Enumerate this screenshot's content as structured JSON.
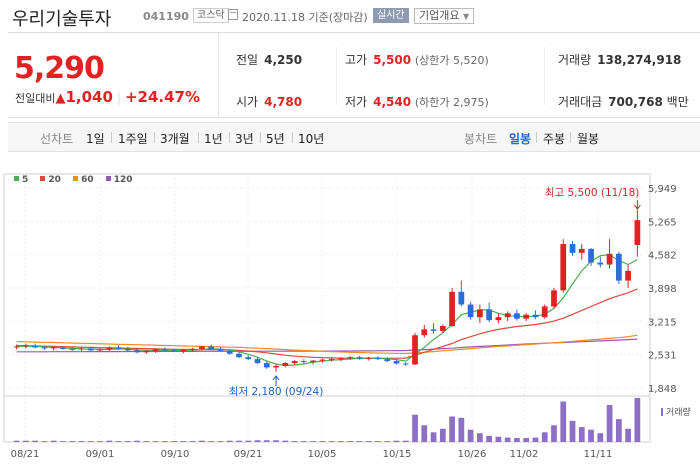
{
  "header": {
    "name": "우리기술투자",
    "code": "041190",
    "market": "코스닥",
    "date": "2020.11.18 기준(장마감)",
    "live": "실시간",
    "corp": "기업개요"
  },
  "summary": {
    "price": "5,290",
    "change_label": "전일대비",
    "change_value": "1,040",
    "change_rate": "+24.47%",
    "prev_label": "전일",
    "prev_value": "4,250",
    "open_label": "시가",
    "open_value": "4,780",
    "high_label": "고가",
    "high_value": "5,500",
    "high_sub": "(상한가 5,520)",
    "low_label": "저가",
    "low_value": "4,540",
    "low_sub": "(하한가 2,975)",
    "volume_label": "거래량",
    "volume_value": "138,274,918",
    "amount_label": "거래대금",
    "amount_value": "700,768",
    "amount_unit": "백만"
  },
  "periods": {
    "line_label": "선차트",
    "line_items": [
      "1일",
      "1주일",
      "3개월",
      "1년",
      "3년",
      "5년",
      "10년"
    ],
    "candle_label": "봉차트",
    "candle_items": [
      "일봉",
      "주봉",
      "월봉"
    ],
    "candle_active": 0
  },
  "colors": {
    "up": "#e12222",
    "down": "#2b6fd6",
    "ma5": "#4caf50",
    "ma20": "#e04a3a",
    "ma60": "#f08a24",
    "ma120": "#9b59b6",
    "volume": "#8e6fc6"
  },
  "chart_data": {
    "type": "candlestick",
    "ylim": [
      1848,
      5949
    ],
    "y_ticks": [
      "5,949",
      "5,265",
      "4,582",
      "3,898",
      "3,215",
      "2,531",
      "1,848"
    ],
    "x_ticks": [
      "08/21",
      "09/01",
      "09/10",
      "09/21",
      "10/05",
      "10/15",
      "10/26",
      "11/02",
      "11/11"
    ],
    "legend": [
      "5",
      "20",
      "60",
      "120"
    ],
    "volume_label": "거래량",
    "max_annotation": "최고 5,500 (11/18)",
    "min_annotation": "최저 2,180 (09/24)",
    "candles": [
      [
        2680,
        2740,
        2640,
        2700
      ],
      [
        2700,
        2760,
        2660,
        2720
      ],
      [
        2720,
        2760,
        2660,
        2680
      ],
      [
        2680,
        2720,
        2630,
        2660
      ],
      [
        2660,
        2710,
        2620,
        2680
      ],
      [
        2680,
        2710,
        2630,
        2650
      ],
      [
        2650,
        2690,
        2610,
        2640
      ],
      [
        2640,
        2680,
        2600,
        2660
      ],
      [
        2660,
        2690,
        2600,
        2620
      ],
      [
        2620,
        2660,
        2580,
        2640
      ],
      [
        2640,
        2700,
        2600,
        2680
      ],
      [
        2680,
        2720,
        2630,
        2650
      ],
      [
        2650,
        2690,
        2600,
        2620
      ],
      [
        2620,
        2650,
        2560,
        2580
      ],
      [
        2580,
        2630,
        2550,
        2610
      ],
      [
        2610,
        2660,
        2570,
        2640
      ],
      [
        2640,
        2680,
        2600,
        2620
      ],
      [
        2620,
        2660,
        2580,
        2600
      ],
      [
        2600,
        2640,
        2560,
        2630
      ],
      [
        2630,
        2670,
        2600,
        2650
      ],
      [
        2650,
        2710,
        2620,
        2700
      ],
      [
        2700,
        2740,
        2630,
        2640
      ],
      [
        2640,
        2680,
        2590,
        2610
      ],
      [
        2610,
        2640,
        2530,
        2550
      ],
      [
        2550,
        2580,
        2460,
        2480
      ],
      [
        2480,
        2520,
        2420,
        2440
      ],
      [
        2440,
        2480,
        2340,
        2360
      ],
      [
        2360,
        2400,
        2240,
        2270
      ],
      [
        2270,
        2330,
        2180,
        2300
      ],
      [
        2300,
        2380,
        2270,
        2360
      ],
      [
        2360,
        2420,
        2320,
        2400
      ],
      [
        2400,
        2440,
        2350,
        2380
      ],
      [
        2380,
        2420,
        2330,
        2410
      ],
      [
        2410,
        2450,
        2370,
        2430
      ],
      [
        2430,
        2470,
        2390,
        2440
      ],
      [
        2440,
        2480,
        2400,
        2460
      ],
      [
        2460,
        2500,
        2420,
        2480
      ],
      [
        2480,
        2510,
        2430,
        2450
      ],
      [
        2450,
        2490,
        2410,
        2470
      ],
      [
        2470,
        2500,
        2420,
        2440
      ],
      [
        2440,
        2480,
        2380,
        2400
      ],
      [
        2400,
        2440,
        2330,
        2350
      ],
      [
        2350,
        2380,
        2300,
        2330
      ],
      [
        2330,
        2980,
        2320,
        2930
      ],
      [
        2930,
        3140,
        2880,
        3050
      ],
      [
        3050,
        3180,
        2960,
        3020
      ],
      [
        3020,
        3150,
        2980,
        3120
      ],
      [
        3120,
        3900,
        3100,
        3820
      ],
      [
        3820,
        4050,
        3520,
        3560
      ],
      [
        3560,
        3620,
        3250,
        3300
      ],
      [
        3300,
        3560,
        3180,
        3460
      ],
      [
        3460,
        3600,
        3200,
        3240
      ],
      [
        3240,
        3380,
        3180,
        3300
      ],
      [
        3300,
        3420,
        3220,
        3380
      ],
      [
        3380,
        3460,
        3230,
        3270
      ],
      [
        3270,
        3380,
        3220,
        3350
      ],
      [
        3350,
        3440,
        3260,
        3300
      ],
      [
        3300,
        3560,
        3270,
        3520
      ],
      [
        3520,
        3900,
        3480,
        3850
      ],
      [
        3850,
        4900,
        3800,
        4800
      ],
      [
        4800,
        4860,
        4560,
        4620
      ],
      [
        4620,
        4800,
        4480,
        4700
      ],
      [
        4700,
        4720,
        4350,
        4420
      ],
      [
        4420,
        4540,
        4320,
        4380
      ],
      [
        4380,
        4900,
        4300,
        4600
      ],
      [
        4600,
        4640,
        3980,
        4050
      ],
      [
        4050,
        4380,
        3900,
        4250
      ],
      [
        4780,
        5500,
        4540,
        5290
      ]
    ],
    "ma5": [
      2700,
      2705,
      2700,
      2690,
      2680,
      2670,
      2660,
      2650,
      2645,
      2640,
      2640,
      2650,
      2645,
      2630,
      2620,
      2620,
      2625,
      2620,
      2620,
      2625,
      2640,
      2650,
      2645,
      2630,
      2590,
      2540,
      2480,
      2400,
      2340,
      2310,
      2320,
      2340,
      2380,
      2400,
      2420,
      2430,
      2445,
      2455,
      2460,
      2460,
      2450,
      2430,
      2400,
      2540,
      2680,
      2840,
      2980,
      3150,
      3350,
      3400,
      3450,
      3450,
      3380,
      3330,
      3320,
      3310,
      3320,
      3360,
      3480,
      3700,
      3980,
      4250,
      4450,
      4560,
      4580,
      4460,
      4380,
      4480
    ],
    "ma20": [
      2720,
      2715,
      2710,
      2705,
      2700,
      2695,
      2690,
      2685,
      2680,
      2675,
      2670,
      2668,
      2665,
      2660,
      2655,
      2650,
      2645,
      2642,
      2640,
      2638,
      2636,
      2635,
      2633,
      2630,
      2620,
      2605,
      2590,
      2570,
      2545,
      2520,
      2500,
      2490,
      2478,
      2470,
      2465,
      2460,
      2458,
      2455,
      2455,
      2455,
      2458,
      2460,
      2462,
      2520,
      2580,
      2640,
      2700,
      2760,
      2840,
      2900,
      2960,
      3010,
      3050,
      3080,
      3110,
      3130,
      3150,
      3180,
      3220,
      3280,
      3360,
      3440,
      3520,
      3600,
      3680,
      3740,
      3800,
      3880
    ],
    "ma60": [
      2800,
      2795,
      2790,
      2785,
      2780,
      2775,
      2770,
      2765,
      2760,
      2755,
      2750,
      2745,
      2740,
      2735,
      2730,
      2725,
      2720,
      2715,
      2710,
      2705,
      2700,
      2695,
      2690,
      2685,
      2680,
      2672,
      2665,
      2655,
      2645,
      2635,
      2625,
      2617,
      2610,
      2602,
      2595,
      2588,
      2580,
      2575,
      2570,
      2565,
      2562,
      2560,
      2558,
      2565,
      2580,
      2595,
      2610,
      2625,
      2640,
      2655,
      2670,
      2685,
      2700,
      2712,
      2725,
      2738,
      2750,
      2762,
      2775,
      2790,
      2805,
      2820,
      2835,
      2850,
      2865,
      2880,
      2900,
      2930
    ],
    "ma120": [
      2590,
      2590,
      2591,
      2591,
      2592,
      2592,
      2593,
      2593,
      2594,
      2594,
      2595,
      2595,
      2596,
      2596,
      2597,
      2597,
      2598,
      2598,
      2599,
      2599,
      2600,
      2600,
      2600,
      2601,
      2601,
      2601,
      2602,
      2602,
      2602,
      2603,
      2603,
      2604,
      2604,
      2605,
      2605,
      2606,
      2607,
      2608,
      2609,
      2610,
      2612,
      2614,
      2616,
      2625,
      2635,
      2645,
      2655,
      2665,
      2678,
      2690,
      2700,
      2710,
      2720,
      2730,
      2740,
      2750,
      2758,
      2766,
      2774,
      2782,
      2790,
      2798,
      2806,
      2814,
      2822,
      2830,
      2840,
      2850
    ],
    "volume": [
      3,
      3,
      3,
      2,
      3,
      2,
      2,
      2,
      2,
      2,
      3,
      2,
      2,
      3,
      2,
      2,
      2,
      2,
      2,
      2,
      3,
      2,
      2,
      3,
      3,
      3,
      4,
      4,
      4,
      3,
      2,
      2,
      2,
      2,
      2,
      2,
      2,
      2,
      2,
      2,
      2,
      3,
      3,
      62,
      38,
      22,
      30,
      58,
      55,
      28,
      20,
      14,
      12,
      10,
      9,
      9,
      10,
      22,
      38,
      92,
      48,
      34,
      28,
      20,
      84,
      52,
      30,
      100
    ]
  }
}
